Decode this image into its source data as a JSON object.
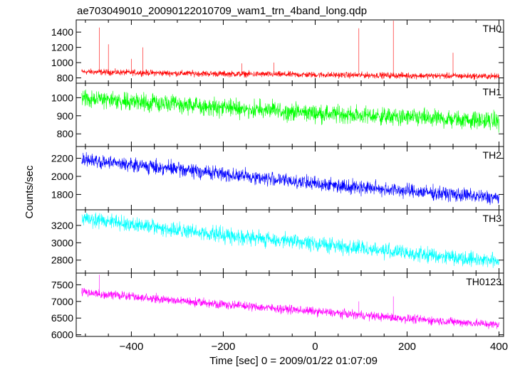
{
  "figure": {
    "title": "ae703049010_20090122010709_wam1_trn_4band_long.qdp"
  },
  "chart_data": {
    "type": "line",
    "title": "ae703049010_20090122010709_wam1_trn_4band_long.qdp",
    "xlabel": "Time [sec] 0 = 2009/01/22 01:07:09",
    "ylabel": "Counts/sec",
    "xlim": [
      -520,
      410
    ],
    "x_ticks": [
      -400,
      -200,
      0,
      200,
      400
    ],
    "x_tick_labels": [
      "−400",
      "−200",
      "0",
      "200",
      "400"
    ],
    "t_start": -508,
    "t_end": 400,
    "panels": [
      {
        "name": "TH0",
        "color": "#ff0000",
        "ylim": [
          730,
          1560
        ],
        "yticks": [
          800,
          1000,
          1200,
          1400
        ],
        "trend": [
          [
            -508,
            880
          ],
          [
            -300,
            860
          ],
          [
            0,
            840
          ],
          [
            200,
            830
          ],
          [
            400,
            820
          ]
        ],
        "noise": 28,
        "spikes": [
          {
            "t": -470,
            "v": 1460
          },
          {
            "t": -450,
            "v": 1240
          },
          {
            "t": -375,
            "v": 1200
          },
          {
            "t": -400,
            "v": 1050
          },
          {
            "t": -160,
            "v": 990
          },
          {
            "t": -90,
            "v": 1000
          },
          {
            "t": 95,
            "v": 1450
          },
          {
            "t": 170,
            "v": 1550
          },
          {
            "t": 300,
            "v": 1130
          }
        ]
      },
      {
        "name": "TH1",
        "color": "#00ff00",
        "ylim": [
          730,
          1080
        ],
        "yticks": [
          800,
          900,
          1000
        ],
        "trend": [
          [
            -508,
            1000
          ],
          [
            -300,
            960
          ],
          [
            0,
            915
          ],
          [
            200,
            890
          ],
          [
            400,
            870
          ]
        ],
        "noise": 34,
        "spikes": []
      },
      {
        "name": "TH2",
        "color": "#0000ff",
        "ylim": [
          1630,
          2330
        ],
        "yticks": [
          1800,
          2000,
          2200
        ],
        "trend": [
          [
            -508,
            2180
          ],
          [
            -300,
            2080
          ],
          [
            0,
            1920
          ],
          [
            200,
            1840
          ],
          [
            400,
            1760
          ]
        ],
        "noise": 55,
        "spikes": []
      },
      {
        "name": "TH3",
        "color": "#00ffff",
        "ylim": [
          2650,
          3380
        ],
        "yticks": [
          2800,
          3000,
          3200
        ],
        "trend": [
          [
            -508,
            3290
          ],
          [
            -300,
            3140
          ],
          [
            0,
            2990
          ],
          [
            200,
            2880
          ],
          [
            400,
            2790
          ]
        ],
        "noise": 60,
        "spikes": []
      },
      {
        "name": "TH0123",
        "color": "#ff00ff",
        "ylim": [
          5950,
          7850
        ],
        "yticks": [
          6000,
          6500,
          7000,
          7500
        ],
        "trend": [
          [
            -508,
            7280
          ],
          [
            -300,
            7020
          ],
          [
            0,
            6700
          ],
          [
            200,
            6480
          ],
          [
            400,
            6300
          ]
        ],
        "noise": 90,
        "spikes": [
          {
            "t": -470,
            "v": 7800
          },
          {
            "t": 95,
            "v": 7000
          },
          {
            "t": 170,
            "v": 7150
          }
        ]
      }
    ]
  }
}
